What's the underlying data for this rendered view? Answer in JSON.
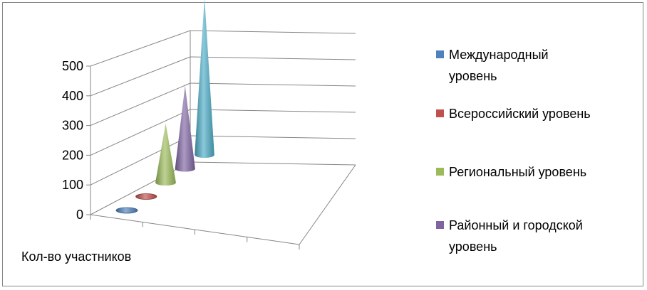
{
  "chart_data": {
    "type": "bar",
    "subtype": "3d-cone",
    "title": "",
    "categories": [
      "Кол-во участников"
    ],
    "series": [
      {
        "name": "Международный уровень",
        "values": [
          3
        ],
        "color": "#4F81BD"
      },
      {
        "name": "Всероссийский уровень",
        "values": [
          20
        ],
        "color": "#C0504D"
      },
      {
        "name": "Региональный уровень",
        "values": [
          200
        ],
        "color": "#9BBB59"
      },
      {
        "name": "Районный и городской уровень",
        "values": [
          280
        ],
        "color": "#8064A2"
      },
      {
        "name": "",
        "values": [
          530
        ],
        "color": "#4BACC6"
      }
    ],
    "ylim": [
      0,
      500
    ],
    "yticks": [
      "0",
      "100",
      "200",
      "300",
      "400",
      "500"
    ],
    "grid": true,
    "legend_position": "right"
  },
  "legend": [
    {
      "line1": "Международный",
      "line2": "уровень",
      "color": "#4F81BD",
      "icon": "blue-square"
    },
    {
      "line1": "Всероссийский уровень",
      "line2": "",
      "color": "#C0504D",
      "icon": "red-square"
    },
    {
      "line1": "Региональный уровень",
      "line2": "",
      "color": "#9BBB59",
      "icon": "green-square"
    },
    {
      "line1": "Районный и городской",
      "line2": "уровень",
      "color": "#8064A2",
      "icon": "purple-square"
    }
  ]
}
